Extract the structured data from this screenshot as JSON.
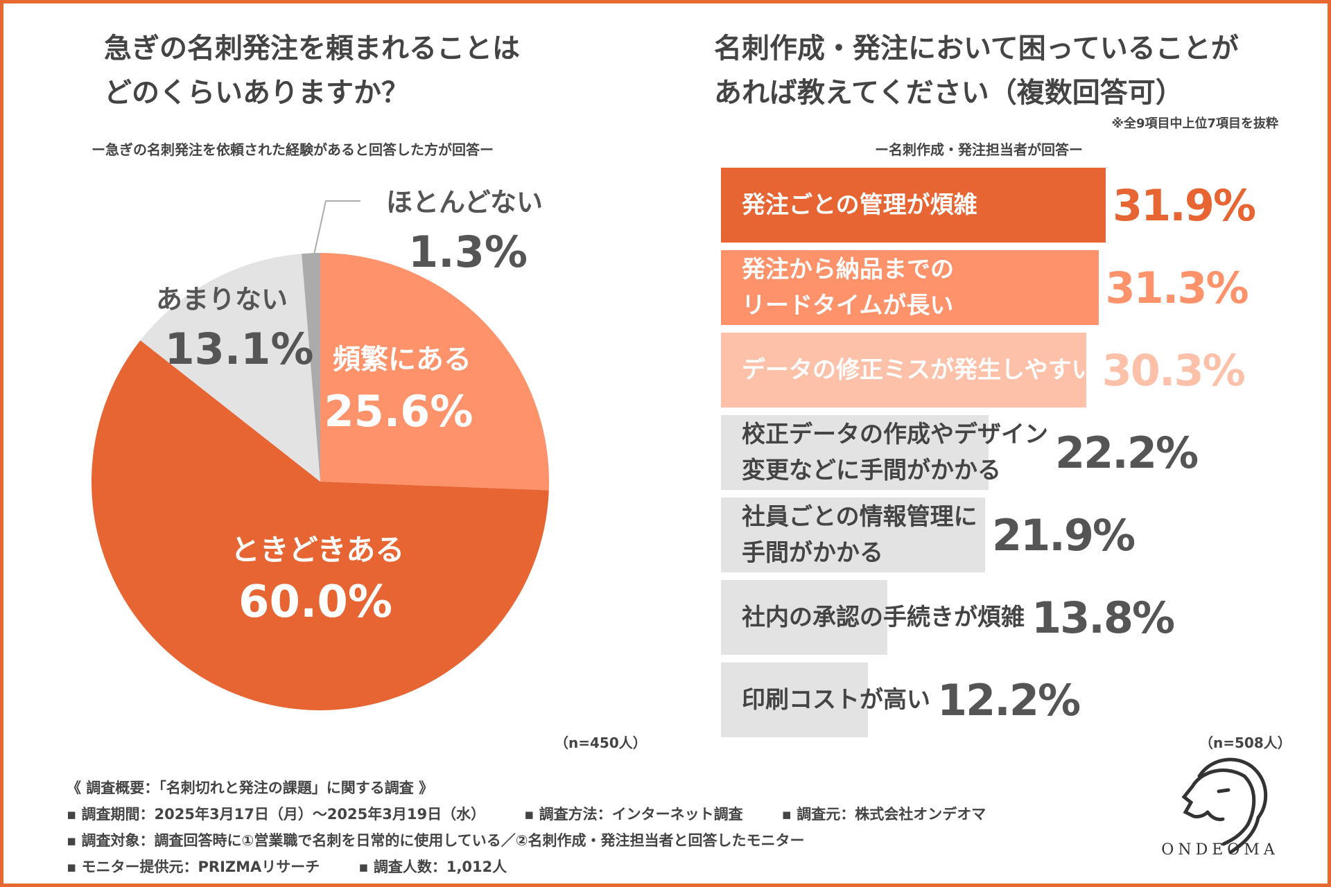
{
  "left": {
    "title_line1": "急ぎの名刺発注を頼まれることは",
    "title_line2": "どのくらいありますか？",
    "subtitle": "ー急ぎの名刺発注を依頼された経験があると回答した方が回答ー",
    "n": "（n=450人）"
  },
  "right": {
    "title_line1": "名刺作成・発注において困っていることが",
    "title_line2": "あれば教えてください（複数回答可）",
    "note": "※全9項目中上位7項目を抜粋",
    "subtitle": "ー名刺作成・発注担当者が回答ー",
    "n": "（n=508人）"
  },
  "colors": {
    "frame": "#e8692f",
    "dark_orange": "#e66532",
    "mid_orange": "#fe936b",
    "light_orange": "#fcc1a8",
    "gray": "#e3e3e3",
    "dark_gray": "#ababab",
    "text": "#444444"
  },
  "chart_data": [
    {
      "type": "pie",
      "title": "急ぎの名刺発注を頼まれることはどのくらいありますか？",
      "slices": [
        {
          "label": "頻繁にある",
          "value": 25.6,
          "display": "25.6%",
          "color": "#fe936b",
          "text_color": "#ffffff"
        },
        {
          "label": "ときどきある",
          "value": 60.0,
          "display": "60.0%",
          "color": "#e66532",
          "text_color": "#ffffff"
        },
        {
          "label": "あまりない",
          "value": 13.1,
          "display": "13.1%",
          "color": "#e3e3e3",
          "text_color": "#555555"
        },
        {
          "label": "ほとんどない",
          "value": 1.3,
          "display": "1.3%",
          "color": "#ababab",
          "text_color": "#555555"
        }
      ]
    },
    {
      "type": "bar",
      "orientation": "horizontal",
      "title": "名刺作成・発注において困っていることがあれば教えてください（複数回答可）",
      "xlim": [
        0,
        50
      ],
      "bars": [
        {
          "label": "発注ごとの管理が煩雑",
          "value": 31.9,
          "display": "31.9%",
          "color": "#e66532",
          "label_color": "#ffffff",
          "value_color": "#e66532"
        },
        {
          "label": "発注から納品までの\nリードタイムが長い",
          "value": 31.3,
          "display": "31.3%",
          "color": "#fe936b",
          "label_color": "#ffffff",
          "value_color": "#fe936b"
        },
        {
          "label": "データの修正ミスが発生しやすい",
          "value": 30.3,
          "display": "30.3%",
          "color": "#fcc1a8",
          "label_color": "#ffffff",
          "value_color": "#fcc1a8"
        },
        {
          "label": "校正データの作成やデザイン\n変更などに手間がかかる",
          "value": 22.2,
          "display": "22.2%",
          "color": "#e3e3e3",
          "label_color": "#444444",
          "value_color": "#555555"
        },
        {
          "label": "社員ごとの情報管理に\n手間がかかる",
          "value": 21.9,
          "display": "21.9%",
          "color": "#e3e3e3",
          "label_color": "#444444",
          "value_color": "#555555"
        },
        {
          "label": "社内の承認の手続きが煩雑",
          "value": 13.8,
          "display": "13.8%",
          "color": "#e3e3e3",
          "label_color": "#444444",
          "value_color": "#555555"
        },
        {
          "label": "印刷コストが高い",
          "value": 12.2,
          "display": "12.2%",
          "color": "#e3e3e3",
          "label_color": "#444444",
          "value_color": "#555555"
        }
      ]
    }
  ],
  "survey": {
    "heading": "《 調査概要：「名刺切れと発注の課題」に関する調査 》",
    "period": "▪ 調査期間：2025年3月17日（月）〜2025年3月19日（水）",
    "method": "▪ 調査方法：インターネット調査",
    "source": "▪ 調査元：株式会社オンデオマ",
    "target": "▪ 調査対象：調査回答時に①営業職で名刺を日常的に使用している／②名刺作成・発注担当者と回答したモニター",
    "provider": "▪ モニター提供元：PRIZMAリサーチ",
    "count": "▪ 調査人数：1,012人"
  },
  "logo": {
    "text": "ONDEOMA",
    "icon": "lion-head-icon"
  }
}
